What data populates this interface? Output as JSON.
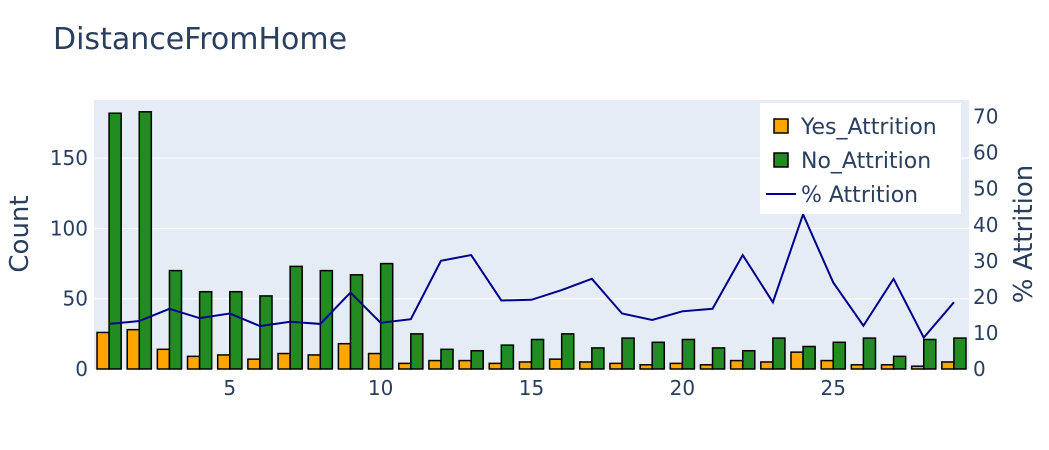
{
  "chart_data": {
    "type": "bar",
    "title": "DistanceFromHome",
    "xlabel": "",
    "ylabel": "Count",
    "y2label": "% Attrition",
    "x": [
      1,
      2,
      3,
      4,
      5,
      6,
      7,
      8,
      9,
      10,
      11,
      12,
      13,
      14,
      15,
      16,
      17,
      18,
      19,
      20,
      21,
      22,
      23,
      24,
      25,
      26,
      27,
      28,
      29
    ],
    "xlim": [
      0.5,
      29.5
    ],
    "ylim": [
      0,
      191.4
    ],
    "y2lim": [
      0,
      74.6
    ],
    "xticks": [
      5,
      10,
      15,
      20,
      25
    ],
    "yticks": [
      0,
      50,
      100,
      150
    ],
    "y2ticks": [
      0,
      10,
      20,
      30,
      40,
      50,
      60,
      70
    ],
    "grid": true,
    "legend_position": "top-right",
    "series": [
      {
        "name": "Yes_Attrition",
        "kind": "bar",
        "axis": "y",
        "color": "#ffa500",
        "values": [
          26,
          28,
          14,
          9,
          10,
          7,
          11,
          10,
          18,
          11,
          4,
          6,
          6,
          4,
          5,
          7,
          5,
          4,
          3,
          4,
          3,
          6,
          5,
          12,
          6,
          3,
          3,
          2,
          5
        ]
      },
      {
        "name": "No_Attrition",
        "kind": "bar",
        "axis": "y",
        "color": "#228b22",
        "values": [
          182,
          183,
          70,
          55,
          55,
          52,
          73,
          70,
          67,
          75,
          25,
          14,
          13,
          17,
          21,
          25,
          15,
          22,
          19,
          21,
          15,
          13,
          22,
          16,
          19,
          22,
          9,
          21,
          22
        ]
      },
      {
        "name": "% Attrition",
        "kind": "line",
        "axis": "y2",
        "color": "#00008b",
        "values": [
          12.5,
          13.3,
          16.7,
          14.1,
          15.4,
          11.9,
          13.1,
          12.5,
          21.2,
          12.8,
          13.8,
          30.0,
          31.6,
          19.0,
          19.2,
          21.9,
          25.0,
          15.4,
          13.6,
          16.0,
          16.7,
          31.6,
          18.5,
          42.9,
          24.0,
          12.0,
          25.0,
          8.7,
          18.5
        ]
      }
    ]
  }
}
